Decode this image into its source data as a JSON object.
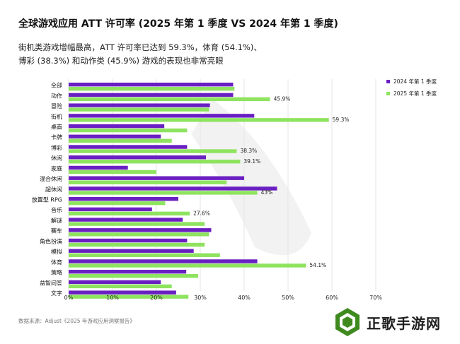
{
  "header": {
    "title": "全球游戏应用 ATT 许可率 (2025 年第 1 季度 VS 2024 年第 1 季度)",
    "subtitle_line1": "街机类游戏增幅最高，ATT 许可率已达到 59.3%，体育 (54.1%)、",
    "subtitle_line2": "博彩 (38.3%) 和动作类 (45.9%) 游戏的表现也非常亮眼"
  },
  "source": "数据来源：Adjust《2025 年游戏应用洞察报告》",
  "watermark": {
    "text": "正歌手游网",
    "logo_icon": "hexagon-logo-icon"
  },
  "colors": {
    "series_2024": "#6a1fc2",
    "series_2025": "#8ee35f",
    "grid": "#e5e5e5"
  },
  "chart_data": {
    "type": "bar",
    "orientation": "horizontal",
    "categories": [
      "全部",
      "动作",
      "冒险",
      "街机",
      "桌面",
      "卡牌",
      "博彩",
      "休闲",
      "家庭",
      "混合休闲",
      "超休闲",
      "放置型 RPG",
      "音乐",
      "解谜",
      "赛车",
      "角色扮演",
      "模拟",
      "体育",
      "策略",
      "益智问答",
      "文字"
    ],
    "series": [
      {
        "name": "2024 年第 1 季度",
        "values": [
          37.5,
          37.5,
          32.2,
          42.3,
          21.8,
          21.0,
          27.0,
          31.3,
          13.5,
          40.0,
          47.5,
          25.0,
          19.0,
          26.0,
          32.5,
          27.0,
          28.5,
          43.0,
          26.8,
          21.0,
          24.5
        ]
      },
      {
        "name": "2025 年第 1 季度",
        "values": [
          37.8,
          45.9,
          32.0,
          59.3,
          27.0,
          23.5,
          38.3,
          39.1,
          20.0,
          36.0,
          43.0,
          22.0,
          27.6,
          31.0,
          32.0,
          31.0,
          34.5,
          54.1,
          29.5,
          23.5,
          27.3
        ]
      }
    ],
    "data_labels": [
      {
        "category": "动作",
        "series": "2025 年第 1 季度",
        "text": "45.9%"
      },
      {
        "category": "街机",
        "series": "2025 年第 1 季度",
        "text": "59.3%"
      },
      {
        "category": "博彩",
        "series": "2025 年第 1 季度",
        "text": "38.3%"
      },
      {
        "category": "休闲",
        "series": "2025 年第 1 季度",
        "text": "39.1%"
      },
      {
        "category": "超休闲",
        "series": "2025 年第 1 季度",
        "text": "43%"
      },
      {
        "category": "音乐",
        "series": "2025 年第 1 季度",
        "text": "27.6%"
      },
      {
        "category": "体育",
        "series": "2025 年第 1 季度",
        "text": "54.1%"
      }
    ],
    "xlim": [
      0,
      70
    ],
    "xticks": [
      "0%",
      "10%",
      "20%",
      "30%",
      "40%",
      "50%",
      "60%",
      "70%"
    ],
    "grid": true,
    "legend_position": "top-right"
  }
}
